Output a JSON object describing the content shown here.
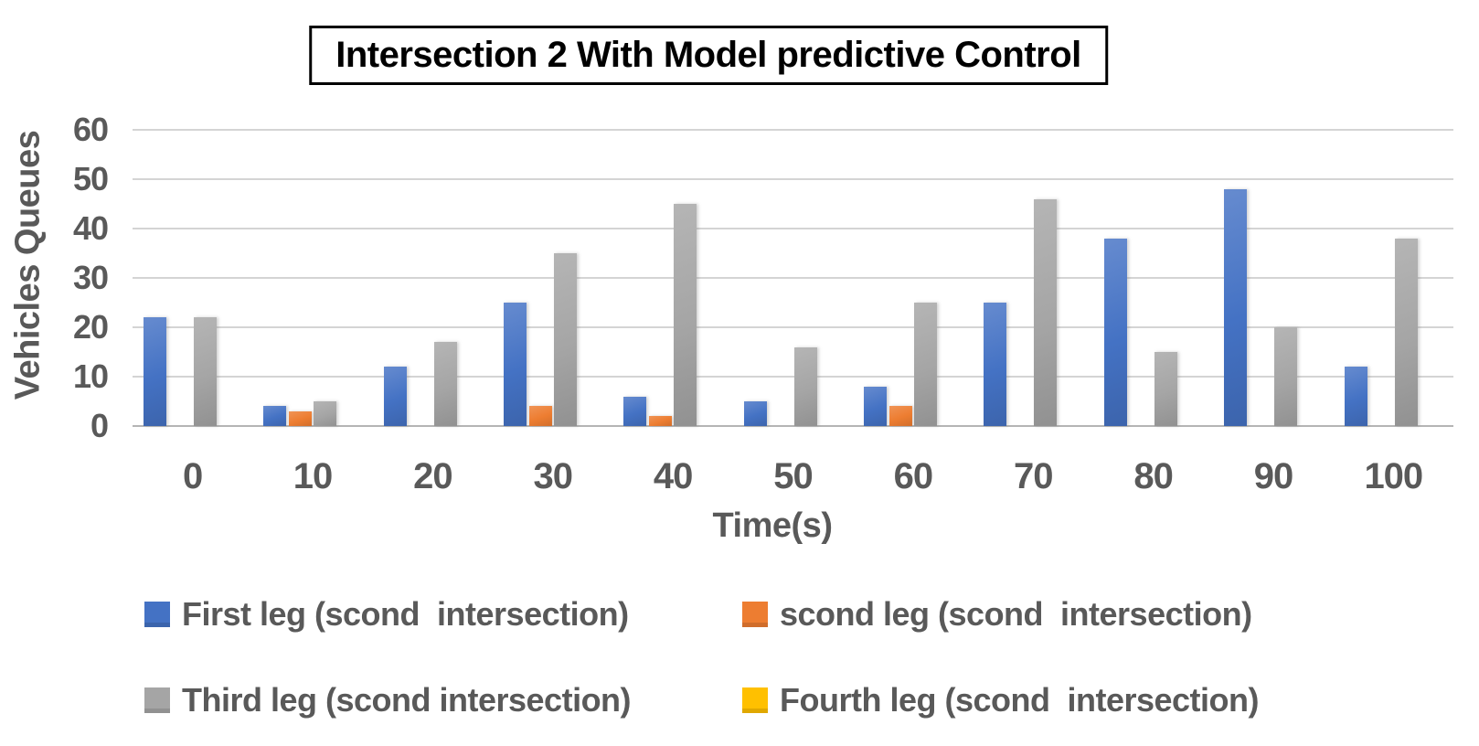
{
  "title": "Intersection 2 With Model predictive Control",
  "chart_data": {
    "type": "bar",
    "title": "Intersection 2 With Model predictive Control",
    "xlabel": "Time(s)",
    "ylabel": "Vehicles Queues",
    "categories": [
      0,
      10,
      20,
      30,
      40,
      50,
      60,
      70,
      80,
      90,
      100
    ],
    "yticks": [
      0,
      10,
      20,
      30,
      40,
      50,
      60
    ],
    "ylim": [
      0,
      60
    ],
    "grid": true,
    "legend_position": "bottom",
    "series": [
      {
        "key": "first-leg",
        "name": "First leg (scond  intersection)",
        "color": "#4472C4",
        "values": [
          22,
          4,
          12,
          25,
          6,
          5,
          8,
          25,
          38,
          48,
          12
        ]
      },
      {
        "key": "scond-leg",
        "name": "scond leg (scond  intersection)",
        "color": "#ED7D31",
        "values": [
          0,
          3,
          0,
          4,
          2,
          0,
          4,
          0,
          0,
          0,
          0
        ]
      },
      {
        "key": "third-leg",
        "name": "Third leg (scond intersection)",
        "color": "#A5A5A5",
        "values": [
          22,
          5,
          17,
          35,
          45,
          16,
          25,
          46,
          15,
          20,
          38
        ]
      },
      {
        "key": "fourth-leg",
        "name": "Fourth leg (scond  intersection)",
        "color": "#FFC000",
        "values": [
          0,
          0,
          0,
          0,
          0,
          0,
          0,
          0,
          0,
          0,
          0
        ]
      }
    ]
  }
}
